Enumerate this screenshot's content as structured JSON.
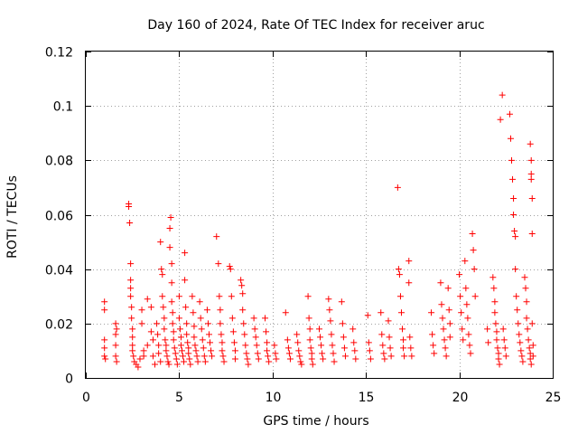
{
  "chart_data": {
    "type": "scatter",
    "title": "Day 160 of 2024, Rate Of TEC Index for receiver aruc",
    "xlabel": "GPS time / hours",
    "ylabel": "ROTI / TECUs",
    "xlim": [
      0,
      25
    ],
    "ylim": [
      0,
      0.12
    ],
    "xticks": [
      0,
      5,
      10,
      15,
      20,
      25
    ],
    "xtick_labels": [
      "0",
      "5",
      "10",
      "15",
      "20",
      "25"
    ],
    "yticks": [
      0,
      0.02,
      0.04,
      0.06,
      0.08,
      0.1,
      0.12
    ],
    "ytick_labels": [
      "0",
      "0.02",
      "0.04",
      "0.06",
      "0.08",
      "0.1",
      "0.12"
    ],
    "grid": true,
    "marker": "+",
    "series": [
      {
        "name": "ROTI",
        "color": "#ff0000",
        "points": [
          [
            1.0,
            0.028
          ],
          [
            1.0,
            0.025
          ],
          [
            1.0,
            0.014
          ],
          [
            1.0,
            0.011
          ],
          [
            1.0,
            0.008
          ],
          [
            1.05,
            0.007
          ],
          [
            1.6,
            0.02
          ],
          [
            1.6,
            0.016
          ],
          [
            1.6,
            0.012
          ],
          [
            1.6,
            0.008
          ],
          [
            1.65,
            0.006
          ],
          [
            1.65,
            0.018
          ],
          [
            2.3,
            0.064
          ],
          [
            2.3,
            0.063
          ],
          [
            2.35,
            0.057
          ],
          [
            2.4,
            0.042
          ],
          [
            2.4,
            0.036
          ],
          [
            2.4,
            0.033
          ],
          [
            2.4,
            0.03
          ],
          [
            2.45,
            0.026
          ],
          [
            2.45,
            0.022
          ],
          [
            2.5,
            0.018
          ],
          [
            2.5,
            0.015
          ],
          [
            2.5,
            0.012
          ],
          [
            2.5,
            0.01
          ],
          [
            2.55,
            0.008
          ],
          [
            2.6,
            0.006
          ],
          [
            2.7,
            0.005
          ],
          [
            2.8,
            0.004
          ],
          [
            2.9,
            0.007
          ],
          [
            3.0,
            0.025
          ],
          [
            3.0,
            0.02
          ],
          [
            3.1,
            0.01
          ],
          [
            3.1,
            0.008
          ],
          [
            3.3,
            0.029
          ],
          [
            3.3,
            0.012
          ],
          [
            3.5,
            0.026
          ],
          [
            3.5,
            0.017
          ],
          [
            3.6,
            0.014
          ],
          [
            3.6,
            0.008
          ],
          [
            3.7,
            0.005
          ],
          [
            3.8,
            0.02
          ],
          [
            3.85,
            0.016
          ],
          [
            3.9,
            0.012
          ],
          [
            3.9,
            0.009
          ],
          [
            4.0,
            0.006
          ],
          [
            4.0,
            0.05
          ],
          [
            4.05,
            0.04
          ],
          [
            4.1,
            0.038
          ],
          [
            4.1,
            0.03
          ],
          [
            4.15,
            0.026
          ],
          [
            4.2,
            0.022
          ],
          [
            4.2,
            0.018
          ],
          [
            4.25,
            0.014
          ],
          [
            4.3,
            0.012
          ],
          [
            4.3,
            0.01
          ],
          [
            4.35,
            0.008
          ],
          [
            4.4,
            0.006
          ],
          [
            4.45,
            0.005
          ],
          [
            4.5,
            0.055
          ],
          [
            4.5,
            0.048
          ],
          [
            4.55,
            0.059
          ],
          [
            4.6,
            0.042
          ],
          [
            4.6,
            0.035
          ],
          [
            4.6,
            0.028
          ],
          [
            4.65,
            0.024
          ],
          [
            4.65,
            0.02
          ],
          [
            4.7,
            0.017
          ],
          [
            4.7,
            0.014
          ],
          [
            4.75,
            0.011
          ],
          [
            4.8,
            0.009
          ],
          [
            4.85,
            0.007
          ],
          [
            4.9,
            0.005
          ],
          [
            5.0,
            0.03
          ],
          [
            5.0,
            0.022
          ],
          [
            5.05,
            0.018
          ],
          [
            5.1,
            0.015
          ],
          [
            5.1,
            0.012
          ],
          [
            5.15,
            0.01
          ],
          [
            5.2,
            0.008
          ],
          [
            5.25,
            0.006
          ],
          [
            5.3,
            0.046
          ],
          [
            5.3,
            0.036
          ],
          [
            5.35,
            0.026
          ],
          [
            5.4,
            0.02
          ],
          [
            5.4,
            0.016
          ],
          [
            5.45,
            0.013
          ],
          [
            5.5,
            0.011
          ],
          [
            5.5,
            0.009
          ],
          [
            5.55,
            0.007
          ],
          [
            5.6,
            0.005
          ],
          [
            5.7,
            0.03
          ],
          [
            5.75,
            0.024
          ],
          [
            5.8,
            0.019
          ],
          [
            5.8,
            0.015
          ],
          [
            5.85,
            0.012
          ],
          [
            5.9,
            0.01
          ],
          [
            5.95,
            0.008
          ],
          [
            6.0,
            0.006
          ],
          [
            6.1,
            0.028
          ],
          [
            6.15,
            0.022
          ],
          [
            6.2,
            0.018
          ],
          [
            6.25,
            0.014
          ],
          [
            6.3,
            0.011
          ],
          [
            6.35,
            0.008
          ],
          [
            6.4,
            0.006
          ],
          [
            6.5,
            0.025
          ],
          [
            6.55,
            0.02
          ],
          [
            6.6,
            0.016
          ],
          [
            6.65,
            0.013
          ],
          [
            6.7,
            0.01
          ],
          [
            6.75,
            0.008
          ],
          [
            7.0,
            0.052
          ],
          [
            7.1,
            0.042
          ],
          [
            7.15,
            0.03
          ],
          [
            7.2,
            0.025
          ],
          [
            7.2,
            0.02
          ],
          [
            7.25,
            0.016
          ],
          [
            7.3,
            0.013
          ],
          [
            7.3,
            0.01
          ],
          [
            7.35,
            0.008
          ],
          [
            7.4,
            0.006
          ],
          [
            7.7,
            0.041
          ],
          [
            7.75,
            0.04
          ],
          [
            7.8,
            0.03
          ],
          [
            7.85,
            0.022
          ],
          [
            7.9,
            0.017
          ],
          [
            7.95,
            0.013
          ],
          [
            8.0,
            0.01
          ],
          [
            8.0,
            0.007
          ],
          [
            8.3,
            0.036
          ],
          [
            8.35,
            0.034
          ],
          [
            8.4,
            0.031
          ],
          [
            8.4,
            0.025
          ],
          [
            8.45,
            0.02
          ],
          [
            8.5,
            0.016
          ],
          [
            8.55,
            0.012
          ],
          [
            8.6,
            0.009
          ],
          [
            8.65,
            0.007
          ],
          [
            8.7,
            0.005
          ],
          [
            9.0,
            0.022
          ],
          [
            9.05,
            0.018
          ],
          [
            9.1,
            0.015
          ],
          [
            9.15,
            0.012
          ],
          [
            9.2,
            0.009
          ],
          [
            9.25,
            0.007
          ],
          [
            9.6,
            0.022
          ],
          [
            9.65,
            0.017
          ],
          [
            9.7,
            0.013
          ],
          [
            9.7,
            0.01
          ],
          [
            9.75,
            0.008
          ],
          [
            9.8,
            0.006
          ],
          [
            10.1,
            0.012
          ],
          [
            10.15,
            0.009
          ],
          [
            10.2,
            0.007
          ],
          [
            10.7,
            0.024
          ],
          [
            10.8,
            0.014
          ],
          [
            10.85,
            0.011
          ],
          [
            10.9,
            0.009
          ],
          [
            10.95,
            0.007
          ],
          [
            11.3,
            0.016
          ],
          [
            11.35,
            0.013
          ],
          [
            11.4,
            0.01
          ],
          [
            11.45,
            0.008
          ],
          [
            11.5,
            0.006
          ],
          [
            11.55,
            0.005
          ],
          [
            11.9,
            0.03
          ],
          [
            11.95,
            0.022
          ],
          [
            12.0,
            0.018
          ],
          [
            12.0,
            0.014
          ],
          [
            12.05,
            0.011
          ],
          [
            12.1,
            0.009
          ],
          [
            12.1,
            0.007
          ],
          [
            12.15,
            0.005
          ],
          [
            12.5,
            0.018
          ],
          [
            12.55,
            0.015
          ],
          [
            12.6,
            0.012
          ],
          [
            12.65,
            0.009
          ],
          [
            12.7,
            0.007
          ],
          [
            13.0,
            0.029
          ],
          [
            13.05,
            0.025
          ],
          [
            13.1,
            0.021
          ],
          [
            13.15,
            0.016
          ],
          [
            13.2,
            0.012
          ],
          [
            13.25,
            0.009
          ],
          [
            13.3,
            0.006
          ],
          [
            13.7,
            0.028
          ],
          [
            13.75,
            0.02
          ],
          [
            13.8,
            0.015
          ],
          [
            13.85,
            0.011
          ],
          [
            13.9,
            0.008
          ],
          [
            14.3,
            0.018
          ],
          [
            14.35,
            0.013
          ],
          [
            14.4,
            0.01
          ],
          [
            14.45,
            0.007
          ],
          [
            15.1,
            0.023
          ],
          [
            15.15,
            0.013
          ],
          [
            15.2,
            0.01
          ],
          [
            15.25,
            0.007
          ],
          [
            15.8,
            0.024
          ],
          [
            15.85,
            0.016
          ],
          [
            15.9,
            0.012
          ],
          [
            15.95,
            0.009
          ],
          [
            16.0,
            0.007
          ],
          [
            16.2,
            0.021
          ],
          [
            16.25,
            0.015
          ],
          [
            16.3,
            0.011
          ],
          [
            16.35,
            0.008
          ],
          [
            16.7,
            0.07
          ],
          [
            16.75,
            0.04
          ],
          [
            16.8,
            0.038
          ],
          [
            16.85,
            0.03
          ],
          [
            16.9,
            0.024
          ],
          [
            16.95,
            0.018
          ],
          [
            17.0,
            0.014
          ],
          [
            17.0,
            0.011
          ],
          [
            17.05,
            0.008
          ],
          [
            17.3,
            0.043
          ],
          [
            17.3,
            0.035
          ],
          [
            17.35,
            0.015
          ],
          [
            17.4,
            0.011
          ],
          [
            17.45,
            0.008
          ],
          [
            18.5,
            0.024
          ],
          [
            18.55,
            0.016
          ],
          [
            18.6,
            0.012
          ],
          [
            18.65,
            0.009
          ],
          [
            19.0,
            0.035
          ],
          [
            19.05,
            0.027
          ],
          [
            19.1,
            0.022
          ],
          [
            19.15,
            0.018
          ],
          [
            19.2,
            0.014
          ],
          [
            19.25,
            0.011
          ],
          [
            19.3,
            0.008
          ],
          [
            19.4,
            0.033
          ],
          [
            19.45,
            0.025
          ],
          [
            19.5,
            0.02
          ],
          [
            19.5,
            0.015
          ],
          [
            20.0,
            0.038
          ],
          [
            20.05,
            0.03
          ],
          [
            20.1,
            0.024
          ],
          [
            20.15,
            0.018
          ],
          [
            20.2,
            0.014
          ],
          [
            20.3,
            0.043
          ],
          [
            20.35,
            0.033
          ],
          [
            20.4,
            0.027
          ],
          [
            20.45,
            0.022
          ],
          [
            20.5,
            0.016
          ],
          [
            20.55,
            0.012
          ],
          [
            20.6,
            0.009
          ],
          [
            20.7,
            0.053
          ],
          [
            20.75,
            0.047
          ],
          [
            20.8,
            0.04
          ],
          [
            20.85,
            0.03
          ],
          [
            21.5,
            0.018
          ],
          [
            21.55,
            0.013
          ],
          [
            21.8,
            0.037
          ],
          [
            21.85,
            0.033
          ],
          [
            21.9,
            0.028
          ],
          [
            21.9,
            0.024
          ],
          [
            21.95,
            0.02
          ],
          [
            22.0,
            0.017
          ],
          [
            22.0,
            0.014
          ],
          [
            22.05,
            0.011
          ],
          [
            22.1,
            0.009
          ],
          [
            22.1,
            0.007
          ],
          [
            22.15,
            0.005
          ],
          [
            22.2,
            0.095
          ],
          [
            22.3,
            0.104
          ],
          [
            22.35,
            0.018
          ],
          [
            22.4,
            0.014
          ],
          [
            22.45,
            0.011
          ],
          [
            22.5,
            0.008
          ],
          [
            22.7,
            0.097
          ],
          [
            22.75,
            0.088
          ],
          [
            22.8,
            0.08
          ],
          [
            22.85,
            0.073
          ],
          [
            22.9,
            0.066
          ],
          [
            22.9,
            0.06
          ],
          [
            22.95,
            0.054
          ],
          [
            23.0,
            0.052
          ],
          [
            23.0,
            0.04
          ],
          [
            23.05,
            0.03
          ],
          [
            23.1,
            0.025
          ],
          [
            23.15,
            0.02
          ],
          [
            23.2,
            0.016
          ],
          [
            23.25,
            0.013
          ],
          [
            23.3,
            0.01
          ],
          [
            23.35,
            0.008
          ],
          [
            23.4,
            0.006
          ],
          [
            23.5,
            0.037
          ],
          [
            23.55,
            0.033
          ],
          [
            23.6,
            0.028
          ],
          [
            23.6,
            0.022
          ],
          [
            23.65,
            0.018
          ],
          [
            23.7,
            0.014
          ],
          [
            23.75,
            0.011
          ],
          [
            23.8,
            0.009
          ],
          [
            23.8,
            0.007
          ],
          [
            23.85,
            0.005
          ],
          [
            23.8,
            0.086
          ],
          [
            23.85,
            0.08
          ],
          [
            23.85,
            0.075
          ],
          [
            23.85,
            0.073
          ],
          [
            23.9,
            0.066
          ],
          [
            23.9,
            0.053
          ],
          [
            23.9,
            0.02
          ],
          [
            23.95,
            0.012
          ],
          [
            23.95,
            0.008
          ]
        ]
      }
    ]
  }
}
